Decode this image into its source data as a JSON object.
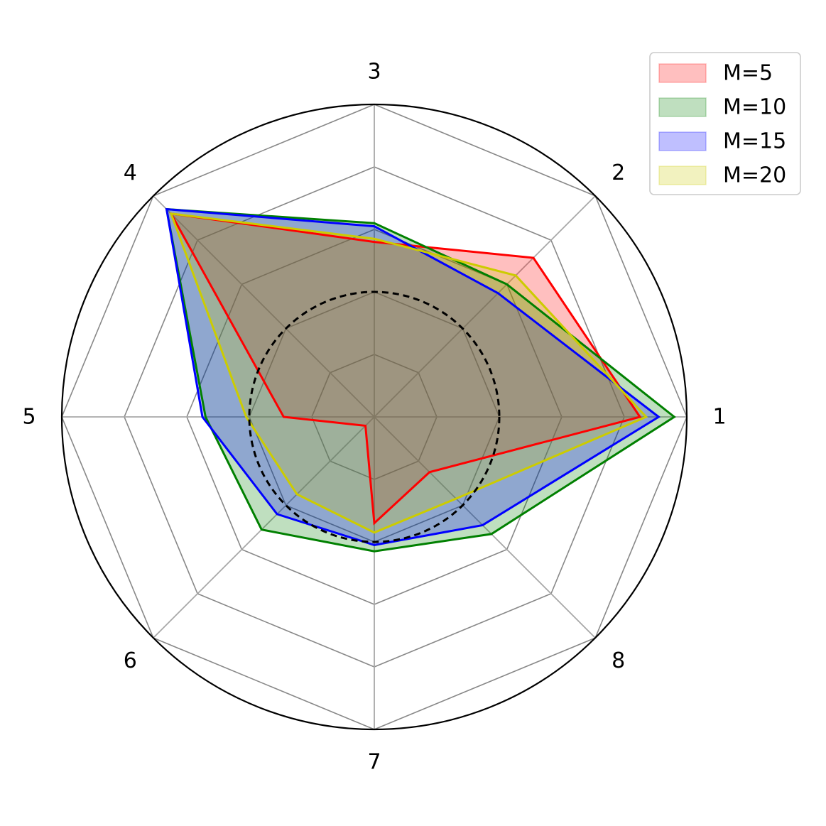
{
  "chart_data": {
    "type": "radar",
    "categories": [
      "1",
      "2",
      "3",
      "4",
      "5",
      "6",
      "7",
      "8"
    ],
    "rlim": [
      0,
      1
    ],
    "ring_levels": [
      0.2,
      0.4,
      0.6,
      0.8,
      1.0
    ],
    "reference_circle": 0.4,
    "series": [
      {
        "name": "M=5",
        "color": "#ff0000",
        "values": [
          0.85,
          0.72,
          0.56,
          0.92,
          0.29,
          0.04,
          0.34,
          0.25
        ]
      },
      {
        "name": "M=10",
        "color": "#008000",
        "values": [
          0.96,
          0.6,
          0.62,
          0.94,
          0.54,
          0.51,
          0.43,
          0.53
        ]
      },
      {
        "name": "M=15",
        "color": "#0000ff",
        "values": [
          0.91,
          0.56,
          0.61,
          0.94,
          0.55,
          0.44,
          0.41,
          0.49
        ]
      },
      {
        "name": "M=20",
        "color": "#cccc00",
        "values": [
          0.87,
          0.64,
          0.57,
          0.92,
          0.41,
          0.35,
          0.37,
          0.37
        ]
      }
    ],
    "legend_position": "top-right",
    "grid": true
  }
}
